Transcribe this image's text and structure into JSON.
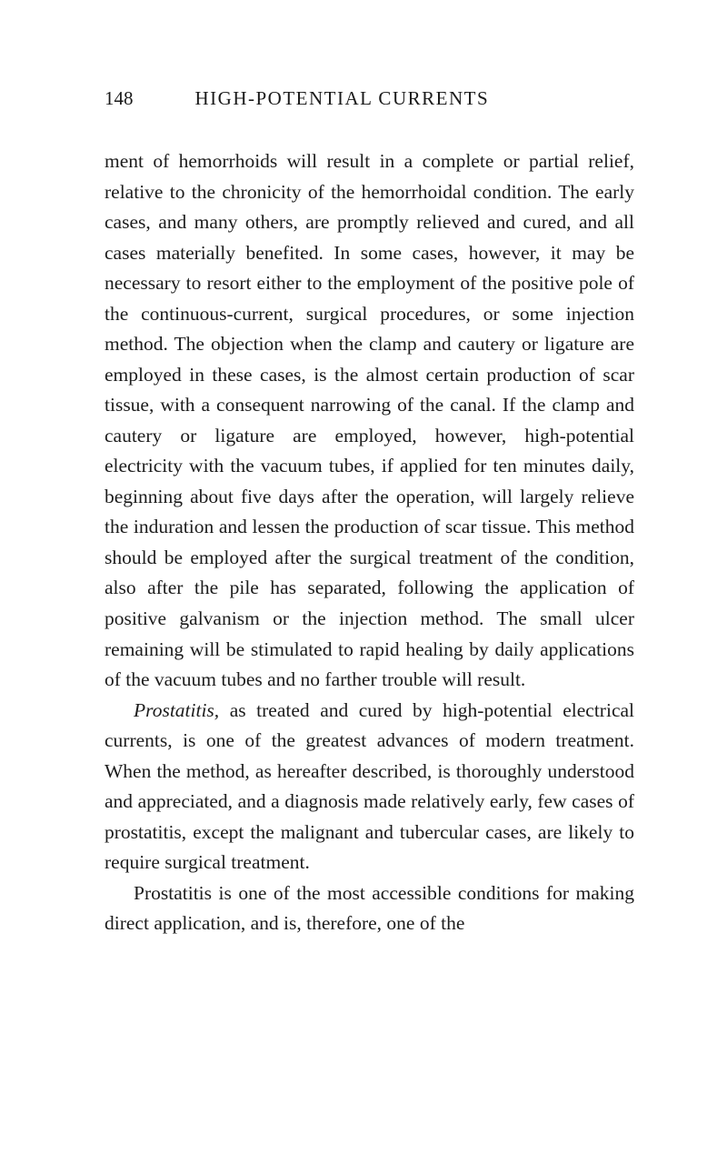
{
  "header": {
    "pageNumber": "148",
    "title": "HIGH-POTENTIAL CURRENTS"
  },
  "paragraphs": {
    "p1": "ment of hemorrhoids will result in a complete or partial relief, relative to the chronicity of the hemorrhoidal condition. The early cases, and many others, are promptly relieved and cured, and all cases materially benefited. In some cases, however, it may be necessary to resort either to the employment of the positive pole of the continuous-current, surgical procedures, or some injection method. The objection when the clamp and cautery or ligature are employed in these cases, is the almost certain production of scar tissue, with a consequent narrowing of the canal. If the clamp and cautery or ligature are employed, however, high-potential electricity with the vacuum tubes, if applied for ten minutes daily, beginning about five days after the operation, will largely relieve the induration and lessen the production of scar tissue. This method should be employed after the surgical treatment of the condition, also after the pile has separated, following the application of positive galvanism or the injection method. The small ulcer remaining will be stimulated to rapid healing by daily applications of the vacuum tubes and no farther trouble will result.",
    "p2_italic": "Prostatitis,",
    "p2_rest": " as treated and cured by high-potential electrical currents, is one of the greatest advances of modern treatment. When the method, as hereafter described, is thoroughly understood and appreciated, and a diagnosis made relatively early, few cases of prostatitis, except the malignant and tubercular cases, are likely to require surgical treatment.",
    "p3": "Prostatitis is one of the most accessible conditions for making direct application, and is, therefore, one of the"
  },
  "colors": {
    "background": "#ffffff",
    "text": "#1c1c1c"
  },
  "typography": {
    "bodyFontSize": 21.5,
    "headerFontSize": 21,
    "lineHeight": 1.56,
    "fontFamily": "Georgia, Times New Roman, serif"
  }
}
